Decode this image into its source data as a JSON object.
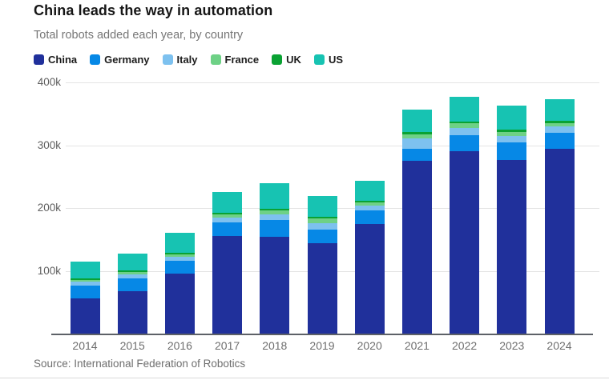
{
  "chart_data": {
    "type": "bar",
    "stacked": true,
    "title": "China leads the way in automation",
    "subtitle": "Total robots added each year, by country",
    "source": "Source: International Federation of Robotics",
    "categories": [
      "2014",
      "2015",
      "2016",
      "2017",
      "2018",
      "2019",
      "2020",
      "2021",
      "2022",
      "2023",
      "2024"
    ],
    "values_unit": "thousands of robots added per year",
    "series": [
      {
        "name": "China",
        "color": "#20309b",
        "values": [
          57.0,
          68.6,
          96.5,
          156.0,
          154.0,
          145.0,
          175.0,
          275.0,
          290.3,
          276.3,
          295.0
        ]
      },
      {
        "name": "Germany",
        "color": "#0688e6",
        "values": [
          20.1,
          20.1,
          20.0,
          21.4,
          26.7,
          20.5,
          21.0,
          20.0,
          25.6,
          28.4,
          25.0
        ]
      },
      {
        "name": "Italy",
        "color": "#7dc1ef",
        "values": [
          6.2,
          6.7,
          6.5,
          7.7,
          9.8,
          11.1,
          8.5,
          16.0,
          11.5,
          10.4,
          10.0
        ]
      },
      {
        "name": "France",
        "color": "#6ed186",
        "values": [
          2.9,
          3.0,
          4.2,
          4.9,
          5.8,
          6.7,
          5.4,
          7.0,
          7.4,
          6.4,
          5.5
        ]
      },
      {
        "name": "UK",
        "color": "#0aa233",
        "values": [
          2.1,
          1.6,
          1.8,
          2.1,
          2.3,
          2.0,
          2.2,
          3.0,
          2.5,
          3.8,
          3.5
        ]
      },
      {
        "name": "US",
        "color": "#17c3b2",
        "values": [
          26.2,
          27.5,
          31.4,
          33.2,
          40.4,
          33.3,
          31.0,
          36.0,
          39.6,
          37.6,
          34.2
        ]
      }
    ],
    "ylim": [
      0,
      400000
    ],
    "ytick_labels": [
      "100k",
      "200k",
      "300k",
      "400k"
    ],
    "grid": "horizontal",
    "legend_position": "top",
    "axis_colors": {
      "gridline": "#e3e3e3",
      "baseline": "#5d6167",
      "tick_text": "#6e6e6e"
    }
  }
}
